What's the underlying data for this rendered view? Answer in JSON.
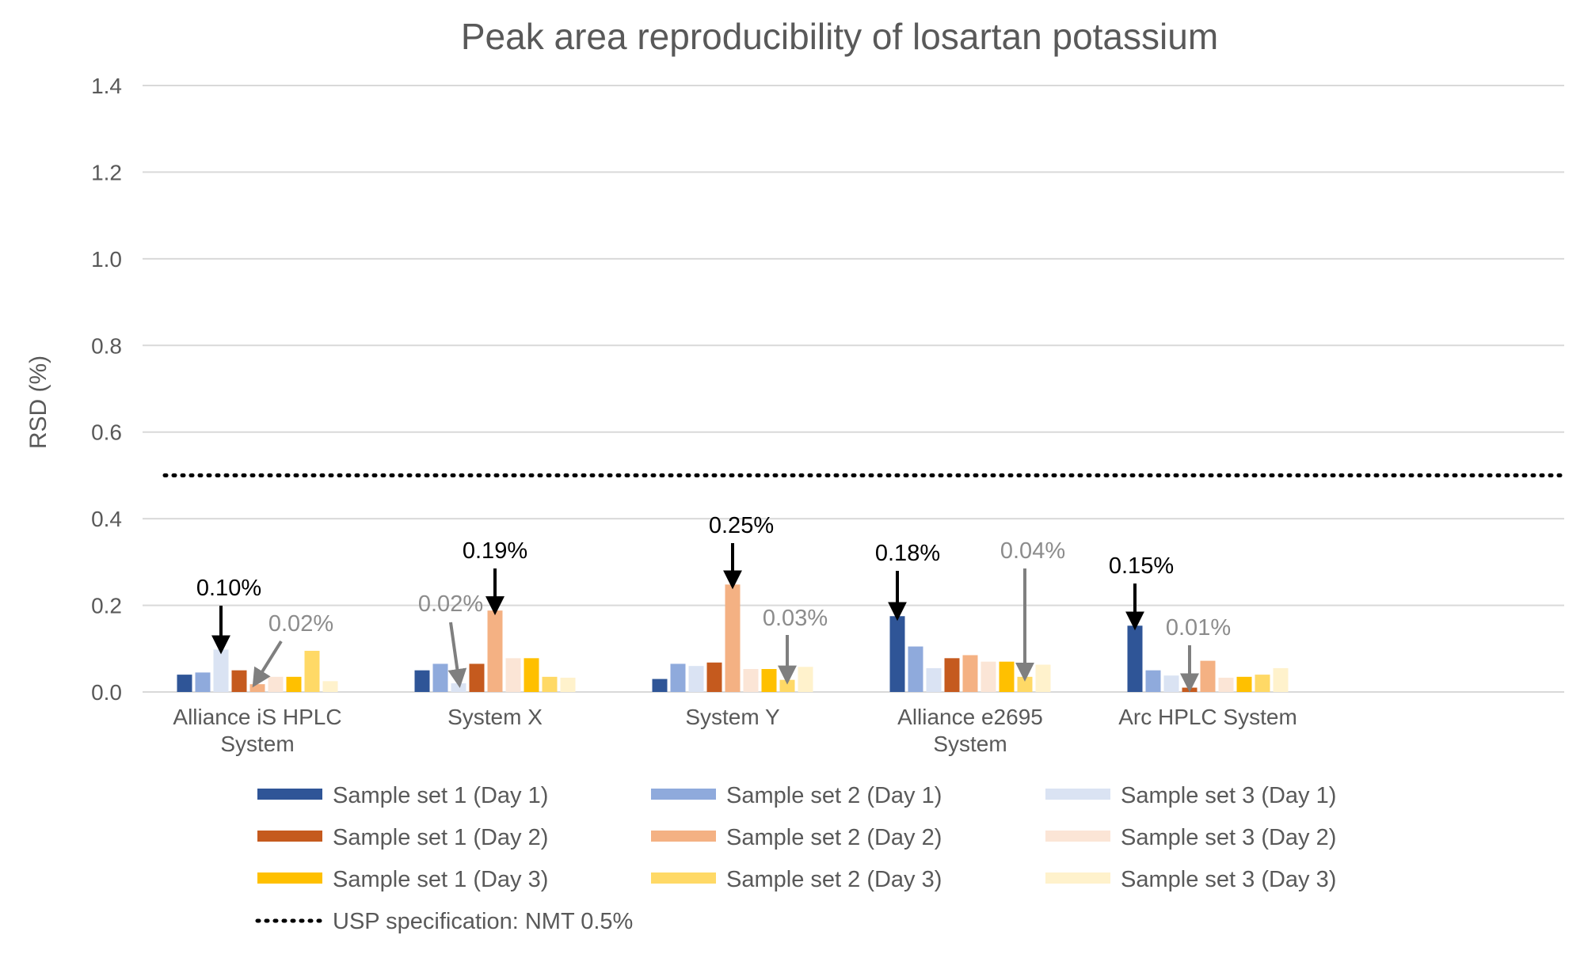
{
  "chart_data": {
    "type": "bar",
    "title": "Peak area reproducibility of losartan potassium",
    "xlabel": "",
    "ylabel": "RSD (%)",
    "ylim": [
      0,
      1.4
    ],
    "yticks": [
      "0.0",
      "0.2",
      "0.4",
      "0.6",
      "0.8",
      "1.0",
      "1.2",
      "1.4"
    ],
    "ytick_values": [
      0,
      0.2,
      0.4,
      0.6,
      0.8,
      1.0,
      1.2,
      1.4
    ],
    "grid": true,
    "legend_position": "bottom",
    "categories": [
      [
        "Alliance iS HPLC",
        "System"
      ],
      [
        "System X"
      ],
      [
        "System Y"
      ],
      [
        "Alliance e2695",
        "System"
      ],
      [
        "Arc HPLC System"
      ]
    ],
    "series": [
      {
        "name": "Sample set 1 (Day 1)",
        "color": "#2f5597",
        "values": [
          0.04,
          0.05,
          0.03,
          0.175,
          0.153
        ]
      },
      {
        "name": "Sample set 2 (Day 1)",
        "color": "#8faadc",
        "values": [
          0.045,
          0.065,
          0.065,
          0.105,
          0.05
        ]
      },
      {
        "name": "Sample set 3 (Day 1)",
        "color": "#dae3f3",
        "values": [
          0.098,
          0.02,
          0.06,
          0.055,
          0.038
        ]
      },
      {
        "name": "Sample set 1 (Day 2)",
        "color": "#c55a1e",
        "values": [
          0.05,
          0.065,
          0.068,
          0.078,
          0.01
        ]
      },
      {
        "name": "Sample set 2 (Day 2)",
        "color": "#f4b183",
        "values": [
          0.018,
          0.188,
          0.248,
          0.085,
          0.072
        ]
      },
      {
        "name": "Sample set 3 (Day 2)",
        "color": "#fbe5d6",
        "values": [
          0.035,
          0.078,
          0.053,
          0.07,
          0.033
        ]
      },
      {
        "name": "Sample set 1 (Day 3)",
        "color": "#ffc000",
        "values": [
          0.035,
          0.078,
          0.053,
          0.07,
          0.035
        ]
      },
      {
        "name": "Sample set 2 (Day 3)",
        "color": "#ffd966",
        "values": [
          0.095,
          0.035,
          0.028,
          0.035,
          0.04
        ]
      },
      {
        "name": "Sample set 3 (Day 3)",
        "color": "#fff2cc",
        "values": [
          0.025,
          0.033,
          0.058,
          0.063,
          0.055
        ]
      }
    ],
    "reference_line": {
      "name": "USP specification: NMT 0.5%",
      "value": 0.5,
      "style": "dotted",
      "color": "#000000"
    },
    "annotations": [
      {
        "label": "0.10%",
        "category": 0,
        "series": 2,
        "color": "black"
      },
      {
        "label": "0.02%",
        "category": 0,
        "series": 4,
        "color": "gray"
      },
      {
        "label": "0.02%",
        "category": 1,
        "series": 2,
        "color": "gray"
      },
      {
        "label": "0.19%",
        "category": 1,
        "series": 4,
        "color": "black"
      },
      {
        "label": "0.25%",
        "category": 2,
        "series": 4,
        "color": "black"
      },
      {
        "label": "0.03%",
        "category": 2,
        "series": 7,
        "color": "gray"
      },
      {
        "label": "0.18%",
        "category": 3,
        "series": 0,
        "color": "black"
      },
      {
        "label": "0.04%",
        "category": 3,
        "series": 7,
        "color": "gray"
      },
      {
        "label": "0.15%",
        "category": 4,
        "series": 0,
        "color": "black"
      },
      {
        "label": "0.01%",
        "category": 4,
        "series": 3,
        "color": "gray"
      }
    ]
  }
}
